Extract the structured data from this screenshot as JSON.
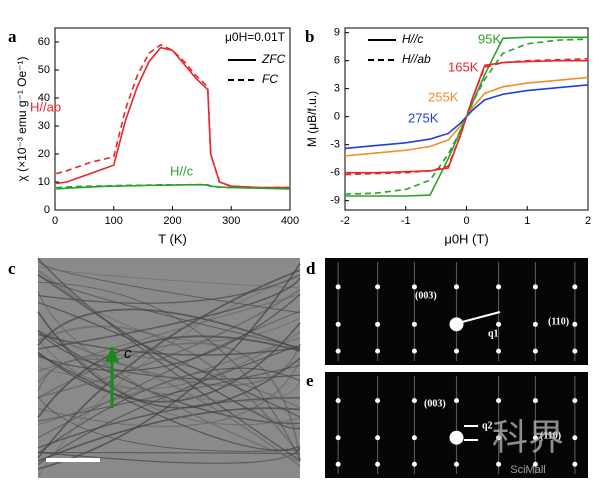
{
  "chart_data": [
    {
      "type": "line",
      "panel": "a",
      "title": "μ0H=0.01T",
      "xlabel": "T (K)",
      "ylabel": "χ (×10⁻³ emu g⁻¹ Oe⁻¹)",
      "xlim": [
        0,
        400
      ],
      "xticks": [
        0,
        100,
        200,
        300,
        400
      ],
      "ylim": [
        0,
        65
      ],
      "yticks": [
        0,
        10,
        20,
        30,
        40,
        50,
        60
      ],
      "legend": [
        {
          "label": "ZFC",
          "dash": false
        },
        {
          "label": "FC",
          "dash": true
        }
      ],
      "x": [
        2,
        20,
        40,
        60,
        80,
        100,
        120,
        140,
        160,
        180,
        200,
        220,
        240,
        255,
        260,
        265,
        280,
        300,
        350,
        400
      ],
      "series": [
        {
          "name": "H//ab",
          "color": "#e8262a",
          "dash": false,
          "values": [
            9.5,
            10,
            11.5,
            13,
            14.5,
            16,
            32,
            44,
            53,
            58,
            57,
            52,
            47,
            44,
            43,
            20,
            10,
            8.5,
            8,
            8
          ]
        },
        {
          "color": "#e8262a",
          "dash": true,
          "values": [
            13,
            14,
            15.5,
            17,
            18,
            19,
            36,
            48,
            56,
            59,
            57,
            53,
            48,
            45,
            44,
            20,
            10,
            8.5,
            8,
            8
          ]
        },
        {
          "name": "H//c",
          "color": "#2ca02c",
          "dash": false,
          "values": [
            7.5,
            7.8,
            8,
            8.2,
            8.4,
            8.5,
            8.6,
            8.7,
            8.8,
            8.8,
            8.9,
            9,
            9,
            9,
            8.8,
            8.5,
            8.2,
            8,
            7.8,
            7.5
          ]
        },
        {
          "color": "#2ca02c",
          "dash": true,
          "values": [
            8,
            8.2,
            8.4,
            8.5,
            8.6,
            8.7,
            8.8,
            8.8,
            8.9,
            9,
            9,
            9,
            9.1,
            9.1,
            9,
            8.6,
            8.2,
            8,
            7.8,
            7.5
          ]
        }
      ]
    },
    {
      "type": "line",
      "panel": "b",
      "xlabel": "μ0H (T)",
      "ylabel": "M (μB/f.u.)",
      "xlim": [
        -2,
        2
      ],
      "xticks": [
        -2,
        -1,
        0,
        1,
        2
      ],
      "ylim": [
        -10,
        9.5
      ],
      "yticks": [
        -9,
        -6,
        -3,
        0,
        3,
        6,
        9
      ],
      "legend": [
        {
          "label": "H//c",
          "dash": false
        },
        {
          "label": "H//ab",
          "dash": true
        }
      ],
      "x": [
        -2,
        -1.5,
        -1,
        -0.6,
        -0.3,
        -0.1,
        0,
        0.1,
        0.3,
        0.6,
        1,
        1.5,
        2
      ],
      "series": [
        {
          "name": "95K",
          "color": "#2ca02c",
          "dash": false,
          "values": [
            -8.5,
            -8.5,
            -8.5,
            -8.4,
            -4.5,
            -1.5,
            0,
            1.5,
            4.5,
            8.4,
            8.5,
            8.5,
            8.5
          ]
        },
        {
          "name": "165K",
          "color": "#e8262a",
          "dash": false,
          "values": [
            -6,
            -6,
            -5.9,
            -5.8,
            -5.5,
            -2,
            0,
            2,
            5.5,
            5.8,
            5.9,
            6,
            6
          ]
        },
        {
          "name": "255K",
          "color": "#f28c28",
          "dash": false,
          "values": [
            -4.2,
            -3.9,
            -3.6,
            -3.2,
            -2.5,
            -1,
            0,
            1,
            2.5,
            3.2,
            3.6,
            3.9,
            4.2
          ]
        },
        {
          "name": "275K",
          "color": "#1f3fd8",
          "dash": false,
          "values": [
            -3.4,
            -3.1,
            -2.8,
            -2.4,
            -1.8,
            -0.7,
            0,
            0.7,
            1.8,
            2.4,
            2.8,
            3.1,
            3.4
          ]
        },
        {
          "color": "#2ca02c",
          "dash": true,
          "values": [
            -8.3,
            -8.2,
            -7.8,
            -6.8,
            -4,
            -1.5,
            0,
            1.5,
            4,
            6.8,
            7.8,
            8.2,
            8.3
          ]
        },
        {
          "color": "#e8262a",
          "dash": true,
          "values": [
            -6.2,
            -6.1,
            -6,
            -5.8,
            -5.3,
            -2,
            0,
            2,
            5.3,
            5.8,
            6,
            6.1,
            6.2
          ]
        }
      ]
    }
  ],
  "images": {
    "c": {
      "panel": "c",
      "arrow_label": "c"
    },
    "d": {
      "panel": "d",
      "spot_1": "(003)",
      "vector": "q1",
      "spot_2": "(110)"
    },
    "e": {
      "panel": "e",
      "spot_1": "(003)",
      "vector": "q2",
      "spot_2": "(110)"
    }
  },
  "watermark": {
    "chinese": "科界",
    "latin": "SciMall"
  }
}
